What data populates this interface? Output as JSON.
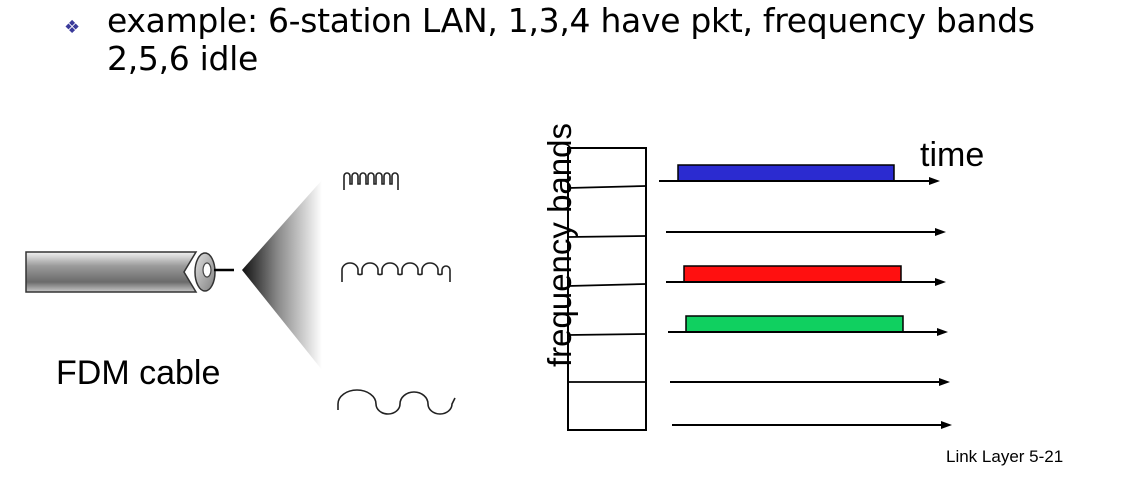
{
  "bullet": {
    "glyph": "❖",
    "text": "example: 6-station LAN, 1,3,4 have pkt, frequency bands 2,5,6 idle"
  },
  "cable": {
    "label": "FDM cable"
  },
  "waveforms": [
    "high-frequency",
    "medium-frequency",
    "low-frequency"
  ],
  "axis": {
    "y_label": "frequency bands",
    "x_label": "time"
  },
  "bands": [
    {
      "band": 1,
      "has_packet": true,
      "color": "#2b2bd0"
    },
    {
      "band": 2,
      "has_packet": false,
      "color": null
    },
    {
      "band": 3,
      "has_packet": true,
      "color": "#ff1010"
    },
    {
      "band": 4,
      "has_packet": true,
      "color": "#10d060"
    },
    {
      "band": 5,
      "has_packet": false,
      "color": null
    },
    {
      "band": 6,
      "has_packet": false,
      "color": null
    }
  ],
  "footer": {
    "text": "Link Layer  5-21"
  }
}
